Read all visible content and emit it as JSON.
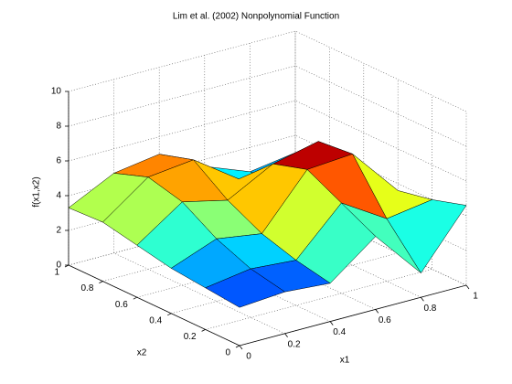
{
  "chart_data": {
    "type": "surface",
    "title": "Lim et al. (2002) Nonpolynomial Function",
    "xlabel": "x1",
    "ylabel": "x2",
    "zlabel": "f(x1,x2)",
    "x": [
      0,
      0.2,
      0.4,
      0.6,
      0.8,
      1
    ],
    "y": [
      0,
      0.2,
      0.4,
      0.6,
      0.8,
      1
    ],
    "z": [
      [
        2.2,
        2.4,
        2.2,
        4.2,
        1.4,
        4.6
      ],
      [
        2.4,
        2.8,
        2.6,
        5.2,
        3.6,
        4.0
      ],
      [
        2.6,
        3.6,
        3.2,
        6.2,
        6.4,
        3.6
      ],
      [
        3.0,
        4.8,
        4.2,
        5.6,
        6.2,
        3.8
      ],
      [
        3.4,
        5.3,
        5.6,
        3.8,
        2.8,
        3.2
      ],
      [
        3.3,
        4.6,
        5.0,
        3.6,
        2.6,
        3.0
      ]
    ],
    "xlim": [
      0,
      1
    ],
    "ylim": [
      0,
      1
    ],
    "zlim": [
      0,
      10
    ],
    "xticks": [
      0,
      0.2,
      0.4,
      0.6,
      0.8,
      1
    ],
    "yticks": [
      0,
      0.2,
      0.4,
      0.6,
      0.8,
      1
    ],
    "zticks": [
      0,
      2,
      4,
      6,
      8,
      10
    ],
    "grid": true
  }
}
